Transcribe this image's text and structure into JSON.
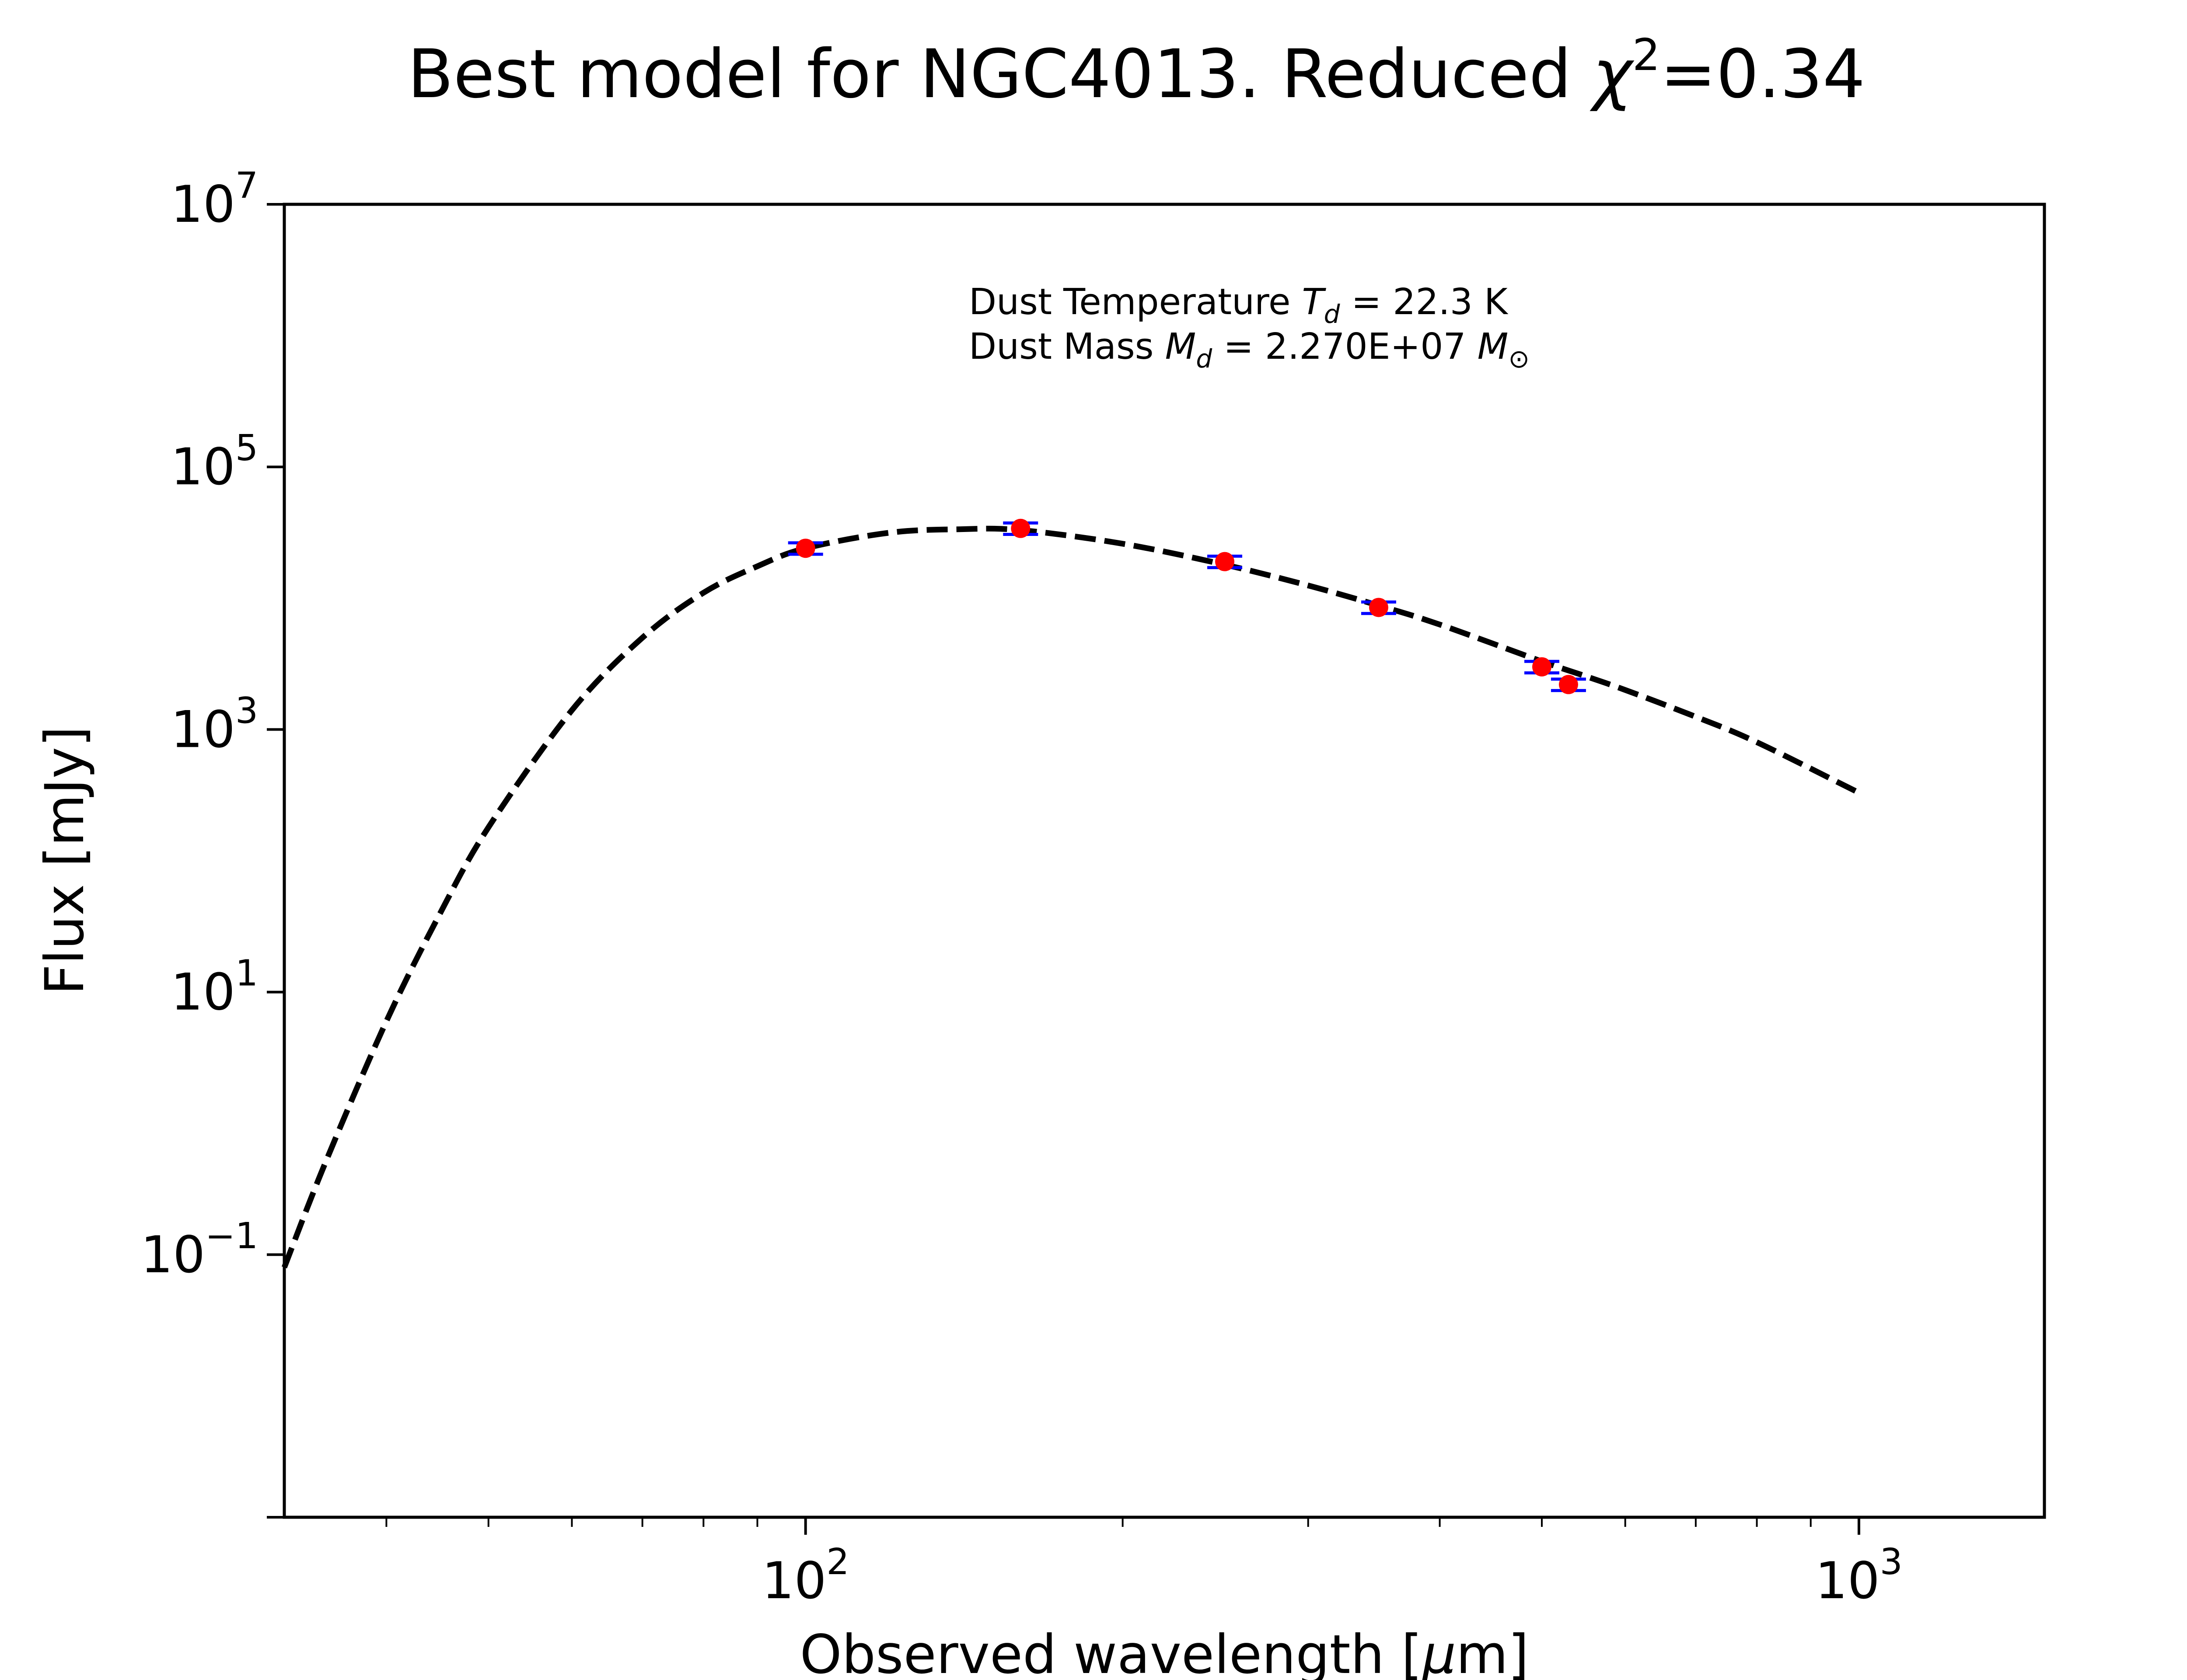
{
  "chart_data": {
    "type": "scatter",
    "title": "Best model for NGC4013. Reduced χ²=0.34",
    "title_parts": {
      "main": "Best model for NGC4013. Reduced ",
      "chi": "χ",
      "chi_sup": "2",
      "chi_value": "=0.34"
    },
    "xlabel": "Observed wavelength [μm]",
    "xlabel_parts": {
      "prefix": "Observed wavelength [",
      "mu": "μ",
      "suffix": "m]"
    },
    "ylabel": "Flux [mJy]",
    "x_scale": "log",
    "y_scale": "log",
    "xlim": [
      32,
      1500
    ],
    "ylim": [
      0.001,
      10000000
    ],
    "x_ticks": [
      {
        "value": 100,
        "base": "10",
        "exp": "2"
      },
      {
        "value": 1000,
        "base": "10",
        "exp": "3"
      }
    ],
    "y_ticks": [
      {
        "value": 0.1,
        "base": "10",
        "exp": "−1"
      },
      {
        "value": 10,
        "base": "10",
        "exp": "1"
      },
      {
        "value": 1000,
        "base": "10",
        "exp": "3"
      },
      {
        "value": 100000,
        "base": "10",
        "exp": "5"
      },
      {
        "value": 10000000,
        "base": "10",
        "exp": "7"
      }
    ],
    "grid": false,
    "annotations": {
      "line1": {
        "prefix": "Dust Temperature ",
        "sym": "T",
        "sub": "d",
        "suffix": " = 22.3 K"
      },
      "line2": {
        "prefix": "Dust Mass ",
        "sym": "M",
        "sub": "d",
        "middle": " = 2.270E+07 ",
        "unit": "M",
        "unit_sub": "⊙"
      }
    },
    "series": [
      {
        "type": "line",
        "style": "dashed",
        "color": "#000000",
        "x": [
          32,
          35,
          40,
          45,
          50,
          60,
          70,
          80,
          90,
          100,
          120,
          140,
          160,
          200,
          250,
          300,
          350,
          400,
          500,
          550,
          600,
          700,
          800,
          1000
        ],
        "y": [
          0.08,
          0.5,
          6,
          40,
          180,
          1400,
          5000,
          11000,
          17500,
          24000,
          31500,
          33500,
          33000,
          26000,
          18000,
          12500,
          8800,
          6300,
          3300,
          2550,
          2000,
          1250,
          800,
          330
        ]
      },
      {
        "type": "scatter",
        "marker": "circle",
        "color": "#ff0000",
        "errorbar_color": "#0000ff",
        "x": [
          100,
          160,
          250,
          350,
          500,
          530
        ],
        "y": [
          24000,
          34000,
          19000,
          8500,
          3000,
          2200
        ],
        "yerr": [
          2400,
          3400,
          1900,
          850,
          300,
          220
        ]
      }
    ]
  }
}
